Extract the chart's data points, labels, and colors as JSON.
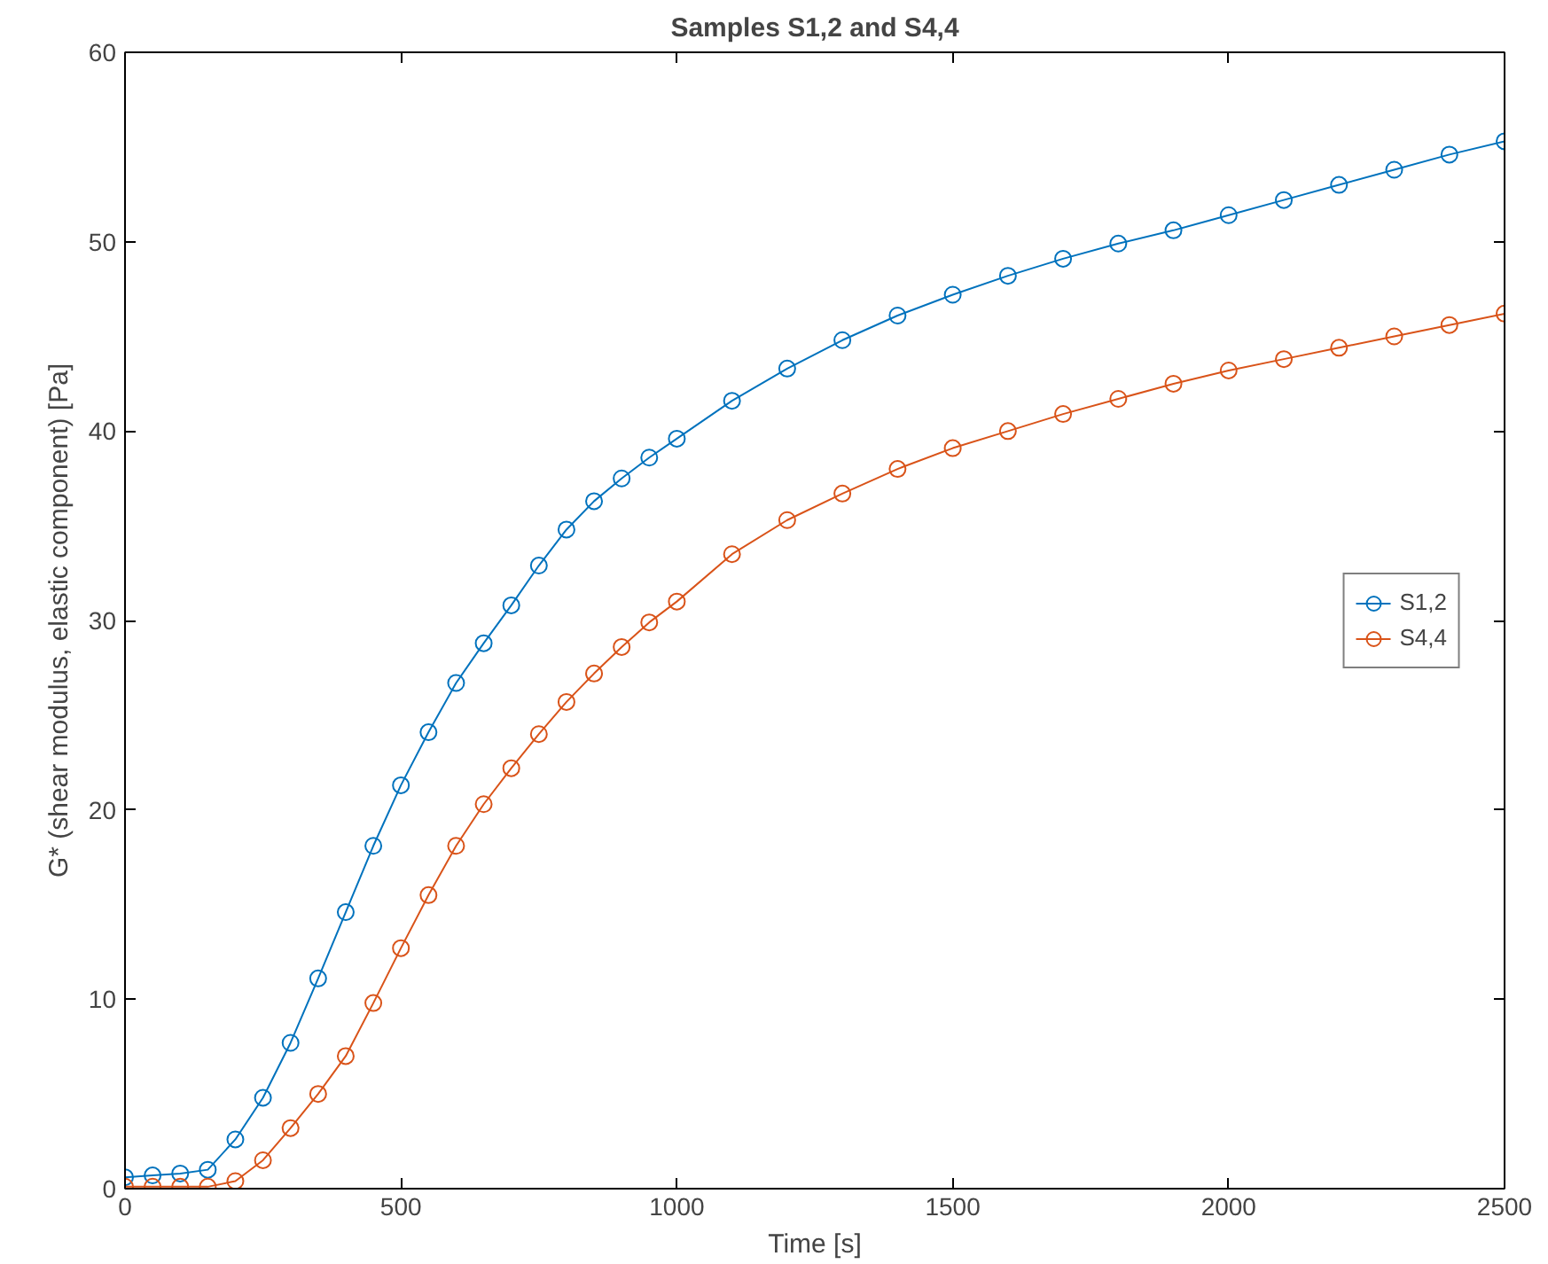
{
  "chart_data": {
    "type": "line",
    "title": "Samples S1,2 and S4,4",
    "xlabel": "Time [s]",
    "ylabel": "G* (shear modulus, elastic component) [Pa]",
    "x": [
      0,
      50,
      100,
      150,
      200,
      250,
      300,
      350,
      400,
      450,
      500,
      550,
      600,
      650,
      700,
      750,
      800,
      850,
      900,
      950,
      1000,
      1100,
      1200,
      1300,
      1400,
      1500,
      1600,
      1700,
      1800,
      1900,
      2000,
      2100,
      2200,
      2300,
      2400,
      2500
    ],
    "series": [
      {
        "name": "S1,2",
        "color": "#0072bd",
        "values": [
          0.6,
          0.7,
          0.8,
          1.0,
          2.6,
          4.8,
          7.7,
          11.1,
          14.6,
          18.1,
          21.3,
          24.1,
          26.7,
          28.8,
          30.8,
          32.9,
          34.8,
          36.3,
          37.5,
          38.6,
          39.6,
          41.6,
          43.3,
          44.8,
          46.1,
          47.2,
          48.2,
          49.1,
          49.9,
          50.6,
          51.4,
          52.2,
          53.0,
          53.8,
          54.6,
          55.3
        ]
      },
      {
        "name": "S4,4",
        "color": "#d95319",
        "values": [
          0.1,
          0.1,
          0.1,
          0.1,
          0.4,
          1.5,
          3.2,
          5.0,
          7.0,
          9.8,
          12.7,
          15.5,
          18.1,
          20.3,
          22.2,
          24.0,
          25.7,
          27.2,
          28.6,
          29.9,
          31.0,
          33.5,
          35.3,
          36.7,
          38.0,
          39.1,
          40.0,
          40.9,
          41.7,
          42.5,
          43.2,
          43.8,
          44.4,
          45.0,
          45.6,
          46.2
        ]
      }
    ],
    "xlim": [
      0,
      2500
    ],
    "xticks": [
      0,
      500,
      1000,
      1500,
      2000,
      2500
    ],
    "ylim": [
      0,
      60
    ],
    "yticks": [
      0,
      10,
      20,
      30,
      40,
      50,
      60
    ],
    "grid": false,
    "legend": "right",
    "marker": "circle",
    "line_style": "solid"
  }
}
